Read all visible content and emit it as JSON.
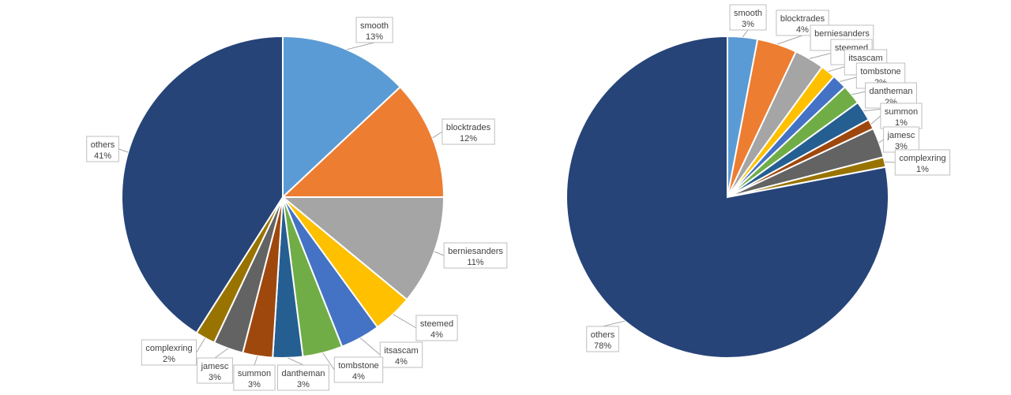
{
  "chart_data": [
    {
      "type": "pie",
      "title": "",
      "categories": [
        "smooth",
        "blocktrades",
        "berniesanders",
        "steemed",
        "itsascam",
        "tombstone",
        "dantheman",
        "summon",
        "jamesc",
        "complexring",
        "others"
      ],
      "values": [
        13,
        12,
        11,
        4,
        4,
        4,
        3,
        3,
        3,
        2,
        41
      ],
      "labels": [
        "13%",
        "12%",
        "11%",
        "4%",
        "4%",
        "4%",
        "3%",
        "3%",
        "3%",
        "2%",
        "41%"
      ],
      "colors": [
        "#5b9bd5",
        "#ed7d31",
        "#a5a5a5",
        "#ffc000",
        "#4472c4",
        "#70ad47",
        "#255e91",
        "#9e480e",
        "#636363",
        "#997300",
        "#264478"
      ],
      "legend": "none",
      "data_labels": "callouts"
    },
    {
      "type": "pie",
      "title": "",
      "categories": [
        "smooth",
        "blocktrades",
        "berniesanders",
        "steemed",
        "itsascam",
        "tombstone",
        "dantheman",
        "summon",
        "jamesc",
        "complexring",
        "others"
      ],
      "values": [
        3,
        4,
        3,
        1.5,
        1.5,
        2,
        2,
        1,
        3,
        1,
        78
      ],
      "labels": [
        "3%",
        "4%",
        "3%",
        "2%",
        "2%",
        "2%",
        "2%",
        "1%",
        "3%",
        "1%",
        "78%"
      ],
      "colors": [
        "#5b9bd5",
        "#ed7d31",
        "#a5a5a5",
        "#ffc000",
        "#4472c4",
        "#70ad47",
        "#255e91",
        "#9e480e",
        "#636363",
        "#997300",
        "#264478"
      ],
      "legend": "none",
      "data_labels": "callouts"
    }
  ]
}
